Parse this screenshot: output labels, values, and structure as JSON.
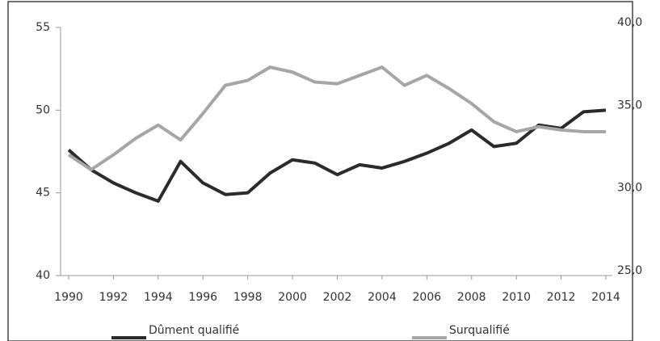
{
  "chart_data": {
    "type": "line",
    "x": [
      1990,
      1991,
      1992,
      1993,
      1994,
      1995,
      1996,
      1997,
      1998,
      1999,
      2000,
      2001,
      2002,
      2003,
      2004,
      2005,
      2006,
      2007,
      2008,
      2009,
      2010,
      2011,
      2012,
      2013,
      2014
    ],
    "series": [
      {
        "name": "Dûment qualifié",
        "color": "#2b2b2b",
        "values": [
          47.6,
          46.4,
          45.6,
          45.0,
          44.5,
          46.9,
          45.6,
          44.9,
          45.0,
          46.2,
          47.0,
          46.8,
          46.1,
          46.7,
          46.5,
          46.9,
          47.4,
          48.0,
          48.8,
          47.8,
          48.0,
          49.1,
          48.9,
          49.9,
          50.0
        ]
      },
      {
        "name": "Surqualifié",
        "color": "#a6a6a6",
        "axis": "y2",
        "values": [
          32.3,
          31.4,
          32.3,
          33.3,
          34.1,
          33.2,
          34.8,
          36.5,
          36.8,
          37.6,
          37.3,
          36.7,
          36.6,
          37.1,
          37.6,
          36.5,
          37.1,
          36.3,
          35.4,
          34.3,
          33.7,
          34.0,
          33.8,
          33.7,
          33.7
        ]
      }
    ],
    "xlim": [
      1990,
      2014
    ],
    "xticks": [
      1990,
      1992,
      1994,
      1996,
      1998,
      2000,
      2002,
      2004,
      2006,
      2008,
      2010,
      2012,
      2014
    ],
    "ylim": [
      40,
      55
    ],
    "yticks": [
      40,
      45,
      50,
      55
    ],
    "y2lim": [
      25,
      40
    ],
    "y2ticks": [
      {
        "value": 25,
        "label": "25,0"
      },
      {
        "value": 30,
        "label": "30,0"
      },
      {
        "value": 35,
        "label": "35,0"
      },
      {
        "value": 40,
        "label": "40,0"
      }
    ]
  }
}
